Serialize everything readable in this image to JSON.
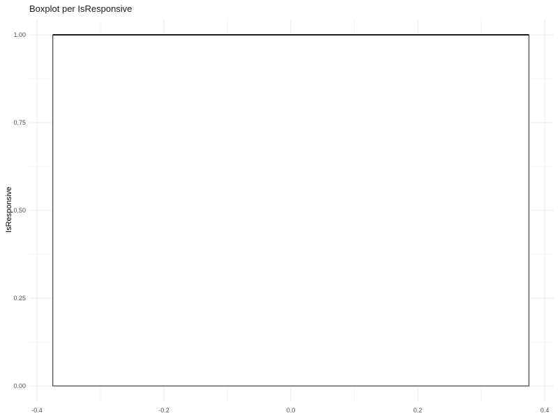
{
  "chart_data": {
    "type": "boxplot",
    "title": "Boxplot per IsResponsive",
    "xlabel": "",
    "ylabel": "IsResponsive",
    "xlim": [
      -0.4,
      0.4
    ],
    "ylim": [
      0,
      1
    ],
    "x_ticks": [
      "-0.4",
      "-0.2",
      "0.0",
      "0.2",
      "0.4"
    ],
    "y_ticks": [
      "0.00",
      "0.25",
      "0.50",
      "0.75",
      "1.00"
    ],
    "grid": true,
    "box": {
      "x_min": -0.375,
      "x_max": 0.375,
      "lower_whisker": 0,
      "q1": 0,
      "median": 1,
      "q3": 1,
      "upper_whisker": 1
    }
  },
  "colors": {
    "grid": "#ebebeb",
    "box_stroke": "#1a1a1a",
    "box_fill": "#ffffff",
    "tick_text": "#4d4d4d"
  }
}
